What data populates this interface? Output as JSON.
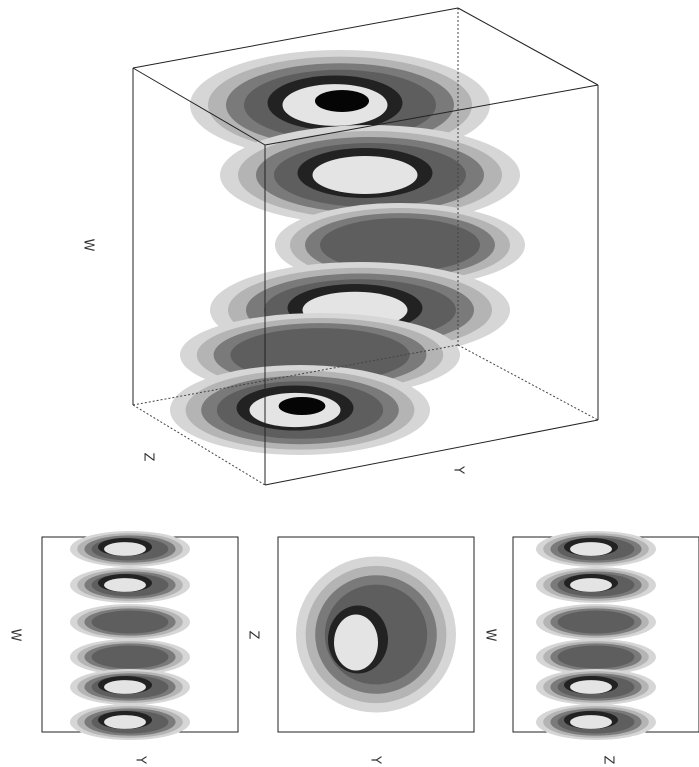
{
  "main_view": {
    "axis_labels": {
      "w": "W",
      "z": "Z",
      "y": "Y"
    }
  },
  "panels": [
    {
      "y_label": "W",
      "x_label": "Y"
    },
    {
      "y_label": "Z",
      "x_label": "Y"
    },
    {
      "y_label": "W",
      "x_label": "Z"
    }
  ]
}
